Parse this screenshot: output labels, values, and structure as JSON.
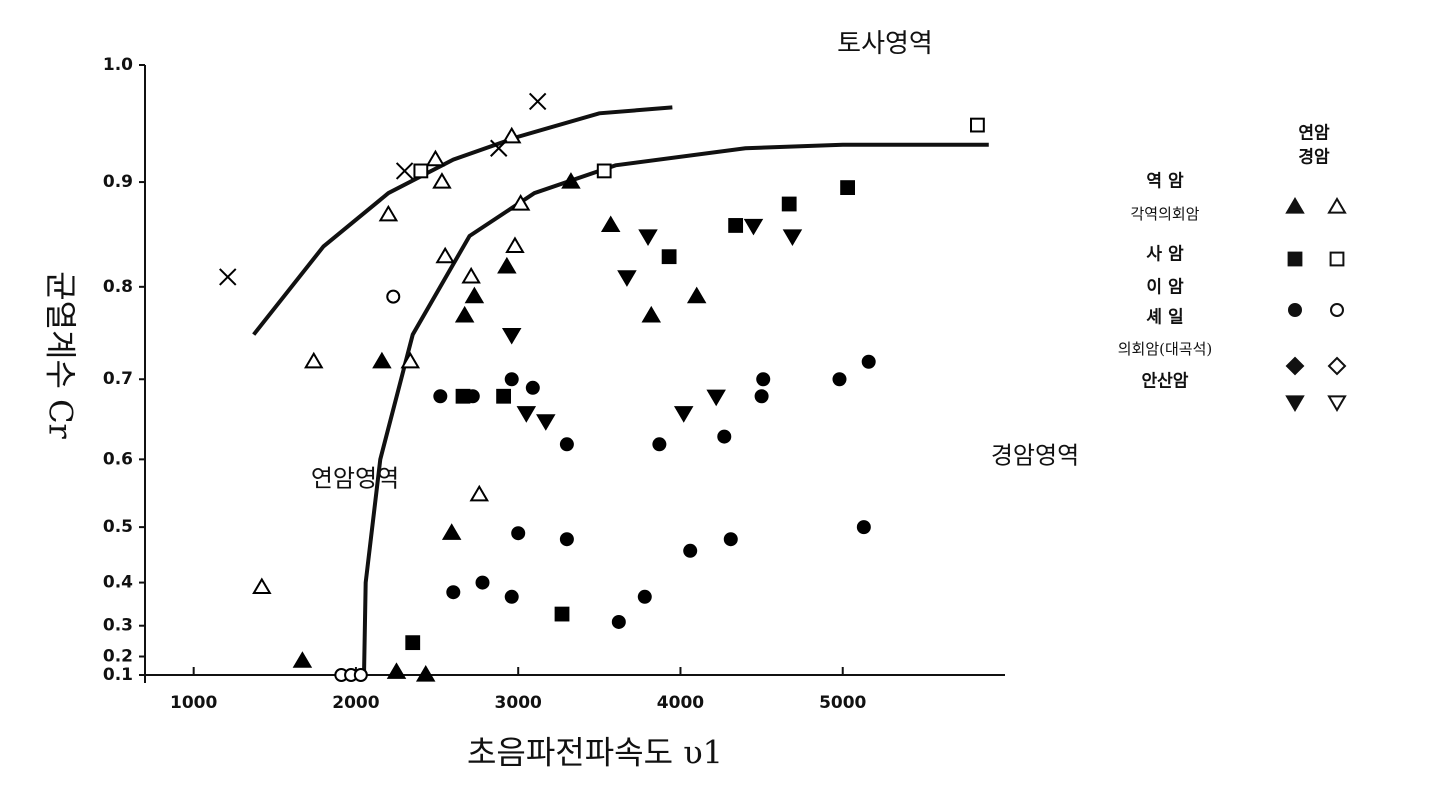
{
  "chart_data": {
    "type": "scatter",
    "x_label": "초음파전파속도 υ1",
    "y_label": "균열계수 Cr",
    "xlim": [
      700,
      6000
    ],
    "xticks": [
      1000,
      2000,
      3000,
      4000,
      5000
    ],
    "ylim": [
      0.1,
      1.0
    ],
    "yscale": "square",
    "yticks": [
      {
        "value": 1,
        "label": "1.0"
      },
      0.9,
      0.8,
      0.7,
      0.6,
      0.5,
      0.4,
      0.3,
      0.2,
      0.1
    ],
    "annotations": [
      "토사영역",
      "연암영역",
      "경암영역"
    ],
    "legend": {
      "columns": [
        "연암",
        "경암"
      ],
      "labels": [
        "역 암",
        "각역의회암",
        "사 암",
        "이 암",
        "셰 일",
        "의회암(대곡석)",
        "안산암"
      ],
      "markers": [
        "triangle",
        "square",
        "circle",
        "diamond",
        "triangle-down"
      ]
    },
    "series": [
      {
        "marker": "triangle",
        "filled": true,
        "color": "#000",
        "x": [
          2160,
          2670,
          2730,
          2930,
          3325,
          3570,
          3820,
          4100,
          1670,
          2250,
          2430,
          2590
        ],
        "values": [
          0.72,
          0.77,
          0.79,
          0.82,
          0.9,
          0.86,
          0.77,
          0.79,
          0.18,
          0.12,
          0.1,
          0.49
        ]
      },
      {
        "marker": "triangle",
        "filled": false,
        "color": "#000",
        "x": [
          1420,
          1740,
          2200,
          2550,
          2530,
          2490,
          2710,
          2760,
          2980,
          3015,
          2960,
          2335
        ],
        "values": [
          0.39,
          0.72,
          0.87,
          0.83,
          0.9,
          0.92,
          0.81,
          0.55,
          0.84,
          0.88,
          0.94,
          0.72
        ]
      },
      {
        "marker": "square",
        "filled": true,
        "color": "#000",
        "x": [
          2350,
          2660,
          2910,
          3270,
          3930,
          4340,
          4670,
          5030
        ],
        "values": [
          0.25,
          0.68,
          0.68,
          0.33,
          0.83,
          0.86,
          0.88,
          0.895
        ]
      },
      {
        "marker": "square",
        "filled": false,
        "color": "#000",
        "x": [
          2400,
          3530,
          5830
        ],
        "values": [
          0.91,
          0.91,
          0.95
        ]
      },
      {
        "marker": "circle",
        "filled": true,
        "color": "#000",
        "x": [
          2520,
          2720,
          2960,
          3090,
          3300,
          3870,
          4270,
          4510,
          4500,
          4980,
          5160,
          3000,
          3300,
          4060,
          4310,
          5130,
          2600,
          2780,
          2960,
          3620,
          3780
        ],
        "values": [
          0.68,
          0.68,
          0.7,
          0.69,
          0.62,
          0.62,
          0.63,
          0.7,
          0.68,
          0.7,
          0.72,
          0.49,
          0.48,
          0.46,
          0.48,
          0.5,
          0.38,
          0.4,
          0.37,
          0.31,
          0.37
        ]
      },
      {
        "marker": "circle",
        "filled": false,
        "color": "#000",
        "x": [
          2230,
          1910,
          1970,
          2030
        ],
        "values": [
          0.79,
          0.1,
          0.1,
          0.1
        ]
      },
      {
        "marker": "triangle-down",
        "filled": true,
        "color": "#000",
        "x": [
          3800,
          3670,
          2960,
          3050,
          4020,
          4220,
          4450,
          4690,
          3170
        ],
        "values": [
          0.85,
          0.81,
          0.75,
          0.66,
          0.66,
          0.68,
          0.86,
          0.85,
          0.65
        ]
      },
      {
        "marker": "cross",
        "filled": false,
        "color": "#000",
        "x": [
          1210,
          2300,
          2880,
          3120
        ],
        "values": [
          0.81,
          0.91,
          0.93,
          0.97
        ]
      }
    ],
    "curves": [
      {
        "x": [
          1370,
          1800,
          2200,
          2600,
          3000,
          3500,
          3950
        ],
        "values": [
          0.75,
          0.84,
          0.89,
          0.92,
          0.94,
          0.96,
          0.965
        ]
      },
      {
        "x": [
          2050,
          2060,
          2150,
          2350,
          2700,
          3100,
          3600,
          4400,
          5000,
          5900
        ],
        "values": [
          0.12,
          0.4,
          0.6,
          0.75,
          0.85,
          0.89,
          0.915,
          0.93,
          0.933,
          0.933
        ]
      }
    ]
  }
}
